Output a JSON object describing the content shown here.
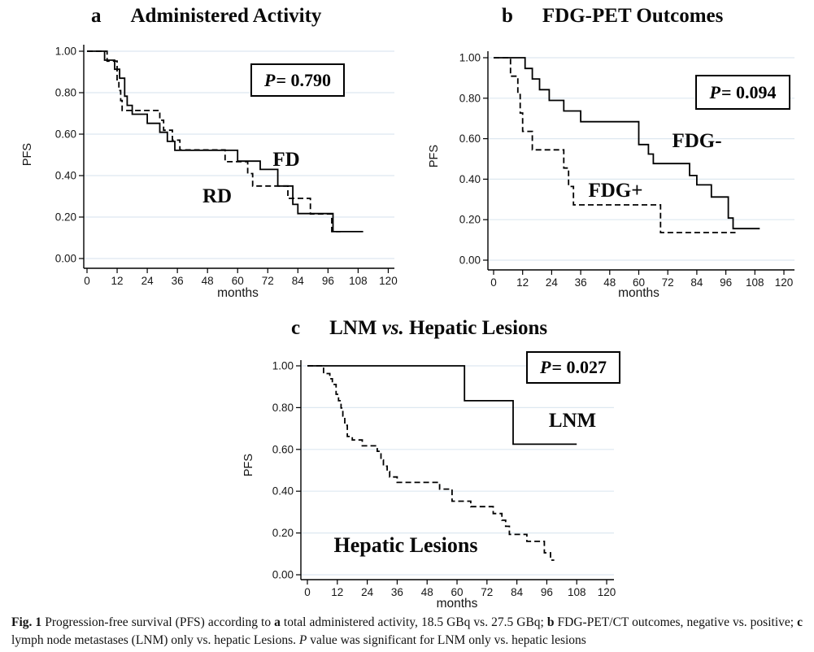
{
  "colors": {
    "curve": "#000000",
    "gridline": "#dde8f0",
    "text": "#000000"
  },
  "figure": {
    "caption_segments": [
      {
        "text": "Fig. 1 ",
        "bold": true
      },
      {
        "text": "Progression-free survival (PFS) according to "
      },
      {
        "text": "a",
        "bold": true
      },
      {
        "text": " total administered activity, 18.5 GBq vs. 27.5 GBq; "
      },
      {
        "text": "b",
        "bold": true
      },
      {
        "text": " FDG-PET/CT outcomes, negative vs. positive; "
      },
      {
        "text": "c",
        "bold": true
      },
      {
        "text": " lymph node metastases (LNM) only vs. hepatic Lesions. "
      },
      {
        "text": "P",
        "italic": true
      },
      {
        "text": " value was significant for LNM only vs. hepatic lesions"
      }
    ]
  },
  "chart_data": [
    {
      "id": "a",
      "type": "line",
      "step": true,
      "letter": "a",
      "title_segments": [
        {
          "text": "Administered Activity"
        }
      ],
      "p_label": {
        "p": "P",
        "rest": "= 0.790"
      },
      "xlabel": "months",
      "ylabel": "PFS",
      "xlim": [
        0,
        120
      ],
      "ylim": [
        0,
        1
      ],
      "xticks": [
        0,
        12,
        24,
        36,
        48,
        60,
        72,
        84,
        96,
        108,
        120
      ],
      "yticks": [
        [
          0,
          "0.00"
        ],
        [
          0.2,
          "0.20"
        ],
        [
          0.4,
          "0.40"
        ],
        [
          0.6,
          "0.60"
        ],
        [
          0.8,
          "0.80"
        ],
        [
          1,
          "1.00"
        ]
      ],
      "grid": true,
      "legend_position": "labels-on-plot",
      "series": [
        {
          "name": "FD",
          "label": "FD",
          "dash": false,
          "points": [
            [
              0,
              1.0
            ],
            [
              7,
              0.957
            ],
            [
              11,
              0.913
            ],
            [
              13,
              0.87
            ],
            [
              15,
              0.783
            ],
            [
              16,
              0.739
            ],
            [
              18,
              0.696
            ],
            [
              24,
              0.652
            ],
            [
              29,
              0.609
            ],
            [
              32,
              0.565
            ],
            [
              35,
              0.522
            ],
            [
              60,
              0.47
            ],
            [
              69,
              0.43
            ],
            [
              76,
              0.35
            ],
            [
              82,
              0.261
            ],
            [
              84,
              0.217
            ],
            [
              98,
              0.13
            ],
            [
              110,
              0.13
            ]
          ]
        },
        {
          "name": "RD",
          "label": "RD",
          "dash": true,
          "points": [
            [
              0,
              1.0
            ],
            [
              8,
              0.952
            ],
            [
              12,
              0.857
            ],
            [
              12.7,
              0.81
            ],
            [
              13.4,
              0.762
            ],
            [
              14,
              0.714
            ],
            [
              29,
              0.667
            ],
            [
              30.5,
              0.619
            ],
            [
              34,
              0.571
            ],
            [
              37,
              0.524
            ],
            [
              55,
              0.467
            ],
            [
              64,
              0.41
            ],
            [
              66,
              0.35
            ],
            [
              80,
              0.29
            ],
            [
              89,
              0.215
            ],
            [
              97.5,
              0.13
            ],
            [
              101,
              0.13
            ]
          ]
        }
      ]
    },
    {
      "id": "b",
      "type": "line",
      "step": true,
      "letter": "b",
      "title_segments": [
        {
          "text": "FDG-PET Outcomes"
        }
      ],
      "p_label": {
        "p": "P",
        "rest": "= 0.094"
      },
      "xlabel": "months",
      "ylabel": "PFS",
      "xlim": [
        0,
        120
      ],
      "ylim": [
        0,
        1
      ],
      "xticks": [
        0,
        12,
        24,
        36,
        48,
        60,
        72,
        84,
        96,
        108,
        120
      ],
      "yticks": [
        [
          0,
          "0.00"
        ],
        [
          0.2,
          "0.20"
        ],
        [
          0.4,
          "0.40"
        ],
        [
          0.6,
          "0.60"
        ],
        [
          0.8,
          "0.80"
        ],
        [
          1,
          "1.00"
        ]
      ],
      "grid": true,
      "legend_position": "labels-on-plot",
      "series": [
        {
          "name": "FDG-",
          "label": "FDG-",
          "dash": false,
          "points": [
            [
              0,
              1.0
            ],
            [
              13,
              0.947
            ],
            [
              16,
              0.895
            ],
            [
              19,
              0.842
            ],
            [
              23,
              0.789
            ],
            [
              29,
              0.737
            ],
            [
              36,
              0.684
            ],
            [
              60,
              0.571
            ],
            [
              64,
              0.524
            ],
            [
              66,
              0.477
            ],
            [
              81,
              0.418
            ],
            [
              84,
              0.372
            ],
            [
              90,
              0.312
            ],
            [
              97,
              0.208
            ],
            [
              99,
              0.156
            ],
            [
              110,
              0.156
            ]
          ]
        },
        {
          "name": "FDG+",
          "label": "FDG+",
          "dash": true,
          "points": [
            [
              0,
              1.0
            ],
            [
              7,
              0.909
            ],
            [
              10,
              0.818
            ],
            [
              11,
              0.727
            ],
            [
              12,
              0.636
            ],
            [
              16,
              0.545
            ],
            [
              29,
              0.455
            ],
            [
              31,
              0.364
            ],
            [
              33,
              0.273
            ],
            [
              69,
              0.136
            ],
            [
              100,
              0.136
            ]
          ]
        }
      ]
    },
    {
      "id": "c",
      "type": "line",
      "step": true,
      "letter": "c",
      "title_segments": [
        {
          "text": "LNM "
        },
        {
          "text": "vs.",
          "italic": true
        },
        {
          "text": " Hepatic Lesions"
        }
      ],
      "p_label": {
        "p": "P",
        "rest": "= 0.027"
      },
      "xlabel": "months",
      "ylabel": "PFS",
      "xlim": [
        0,
        120
      ],
      "ylim": [
        0,
        1
      ],
      "xticks": [
        0,
        12,
        24,
        36,
        48,
        60,
        72,
        84,
        96,
        108,
        120
      ],
      "yticks": [
        [
          0,
          "0.00"
        ],
        [
          0.2,
          "0.20"
        ],
        [
          0.4,
          "0.40"
        ],
        [
          0.6,
          "0.60"
        ],
        [
          0.8,
          "0.80"
        ],
        [
          1,
          "1.00"
        ]
      ],
      "grid": true,
      "legend_position": "labels-on-plot",
      "series": [
        {
          "name": "LNM",
          "label": "LNM",
          "dash": false,
          "points": [
            [
              0,
              1.0
            ],
            [
              63,
              0.833
            ],
            [
              82.5,
              0.625
            ],
            [
              108,
              0.625
            ]
          ]
        },
        {
          "name": "Hepatic Lesions",
          "label": "Hepatic Lesions",
          "dash": true,
          "points": [
            [
              0,
              1.0
            ],
            [
              6.5,
              0.963
            ],
            [
              9,
              0.938
            ],
            [
              10,
              0.911
            ],
            [
              11.5,
              0.864
            ],
            [
              12.5,
              0.833
            ],
            [
              13.5,
              0.798
            ],
            [
              14.2,
              0.76
            ],
            [
              15,
              0.715
            ],
            [
              16,
              0.662
            ],
            [
              18,
              0.645
            ],
            [
              22,
              0.617
            ],
            [
              28,
              0.591
            ],
            [
              29.5,
              0.549
            ],
            [
              30.5,
              0.52
            ],
            [
              32,
              0.494
            ],
            [
              33,
              0.468
            ],
            [
              36,
              0.442
            ],
            [
              53,
              0.41
            ],
            [
              58,
              0.352
            ],
            [
              65.5,
              0.326
            ],
            [
              74.5,
              0.293
            ],
            [
              78,
              0.261
            ],
            [
              79.5,
              0.232
            ],
            [
              81,
              0.193
            ],
            [
              88,
              0.16
            ],
            [
              95,
              0.105
            ],
            [
              97.5,
              0.07
            ],
            [
              99,
              0.07
            ]
          ]
        }
      ]
    }
  ]
}
